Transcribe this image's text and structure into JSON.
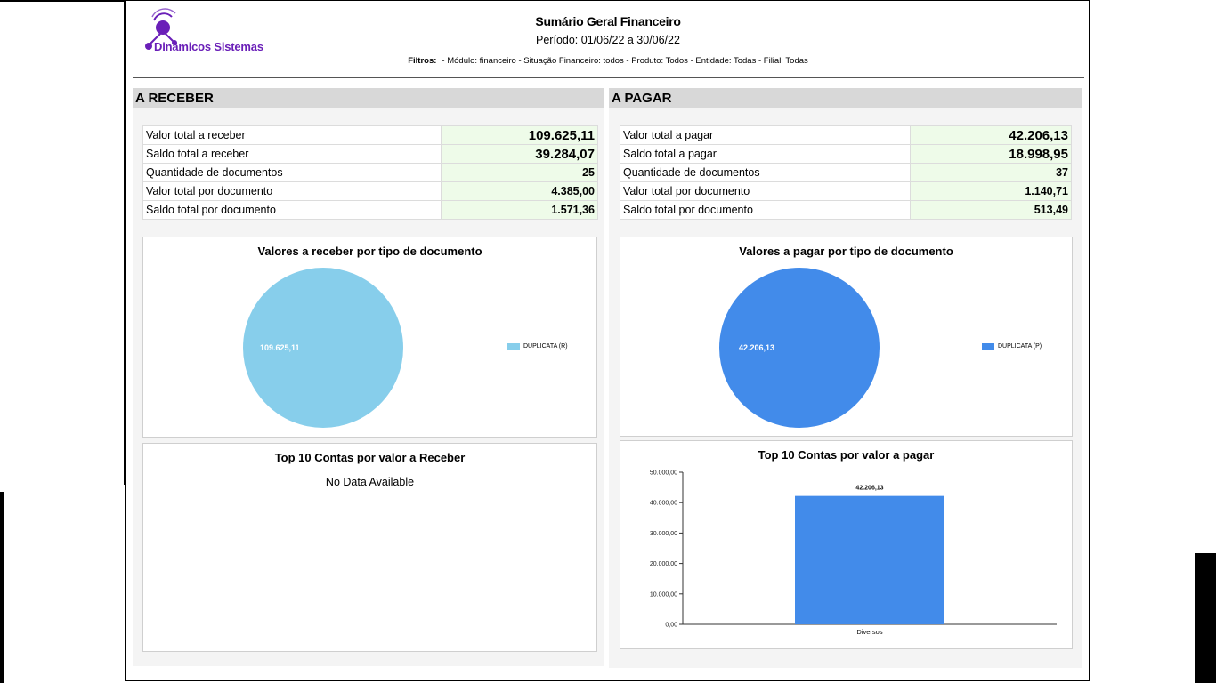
{
  "header": {
    "logo_text": "Dinâmicos Sistemas",
    "title": "Sumário Geral Financeiro",
    "period": "Período: 01/06/22 a 30/06/22",
    "filters_label": "Filtros:",
    "filters_text": "- Módulo: financeiro - Situação Financeiro: todos - Produto: Todos - Entidade: Todas - Filial: Todas"
  },
  "receber": {
    "heading": "A RECEBER",
    "rows": [
      {
        "label": "Valor total a receber",
        "value": "109.625,11"
      },
      {
        "label": "Saldo total a receber",
        "value": "39.284,07"
      },
      {
        "label": "Quantidade de documentos",
        "value": "25"
      },
      {
        "label": "Valor total por documento",
        "value": "4.385,00"
      },
      {
        "label": "Saldo total por documento",
        "value": "1.571,36"
      }
    ],
    "pie_title": "Valores a receber por tipo de documento",
    "pie_label": "109.625,11",
    "pie_legend": "DUPLICATA (R)",
    "pie_color": "#87ceeb",
    "top_title": "Top 10 Contas por valor a Receber",
    "top_nodata": "No Data Available"
  },
  "pagar": {
    "heading": "A PAGAR",
    "rows": [
      {
        "label": "Valor total a pagar",
        "value": "42.206,13"
      },
      {
        "label": "Saldo total a pagar",
        "value": "18.998,95"
      },
      {
        "label": "Quantidade de documentos",
        "value": "37"
      },
      {
        "label": "Valor total por documento",
        "value": "1.140,71"
      },
      {
        "label": "Saldo total por documento",
        "value": "513,49"
      }
    ],
    "pie_title": "Valores a pagar por tipo de documento",
    "pie_label": "42.206,13",
    "pie_legend": "DUPLICATA (P)",
    "pie_color": "#428bea",
    "top_title": "Top 10 Contas por valor a pagar"
  },
  "colors": {
    "logo_purple": "#6a1fb8",
    "value_bg": "#eefbe9",
    "section_head": "#d8d8d8",
    "bar": "#428bea"
  },
  "chart_data": {
    "type": "bar",
    "categories": [
      "Diversos"
    ],
    "values": [
      42206.13
    ],
    "value_labels": [
      "42.206,13"
    ],
    "ylim": [
      0,
      50000
    ],
    "yticks": [
      0,
      10000,
      20000,
      30000,
      40000,
      50000
    ],
    "ytick_labels": [
      "0,00",
      "10.000,00",
      "20.000,00",
      "30.000,00",
      "40.000,00",
      "50.000,00"
    ]
  }
}
